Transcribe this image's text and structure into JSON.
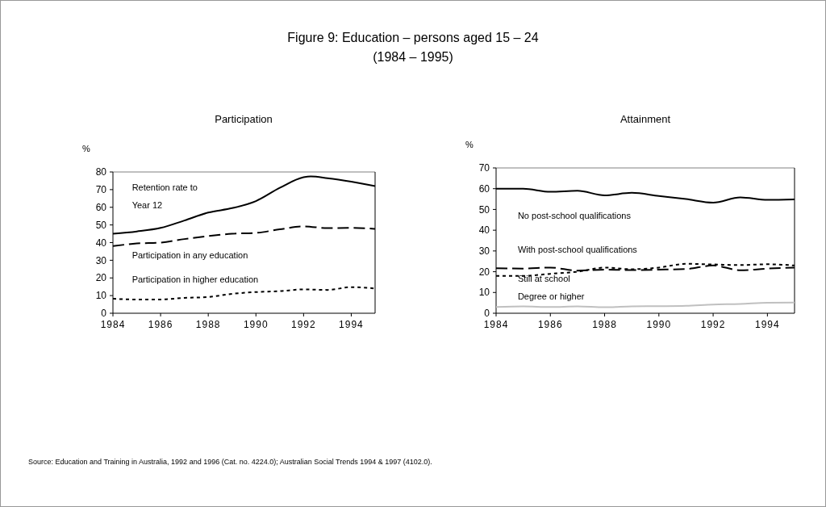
{
  "chart_data": [
    {
      "type": "other",
      "title": "Figure 9: Education – persons aged 15 – 24",
      "subtitle": "(1984 – 1995)",
      "annotations": [
        "Source: Education and Training in Australia, 1992 and 1996 (Cat. no. 4224.0); Australian Social Trends 1994 & 1997 (4102.0)."
      ]
    },
    {
      "type": "line",
      "title": "Participation",
      "ylabel": "%",
      "xlim": [
        1984,
        1995
      ],
      "xticks": [
        1984,
        1986,
        1988,
        1990,
        1992,
        1994
      ],
      "ylim": [
        0,
        80
      ],
      "yticks": [
        0,
        10,
        20,
        30,
        40,
        50,
        60,
        70,
        80
      ],
      "grid": false,
      "marker": "none",
      "x": [
        1984,
        1985,
        1986,
        1987,
        1988,
        1989,
        1990,
        1991,
        1992,
        1993,
        1994,
        1995
      ],
      "series": [
        {
          "name": "Retention rate to Year 12",
          "color": "#000000",
          "line_style": "solid",
          "x": [
            1984,
            1985,
            1986,
            1987,
            1988,
            1989,
            1990,
            1991,
            1992,
            1992.3,
            1993,
            1994,
            1995
          ],
          "values": [
            45,
            46.3,
            48.3,
            52.5,
            57,
            59.5,
            63.5,
            71,
            77,
            77.5,
            76.5,
            74.5,
            72
          ]
        },
        {
          "name": "Participation in any education",
          "color": "#000000",
          "line_style": "dashed",
          "values": [
            38,
            39.5,
            40,
            42,
            43.7,
            45,
            45.5,
            47.5,
            49.2,
            48.2,
            48.3,
            47.8
          ]
        },
        {
          "name": "Participation in higher education",
          "color": "#000000",
          "line_style": "dotted",
          "values": [
            8.2,
            7.8,
            7.8,
            8.7,
            9.2,
            11,
            12,
            12.5,
            13.5,
            13.2,
            14.8,
            14
          ]
        }
      ]
    },
    {
      "type": "line",
      "title": "Attainment",
      "ylabel": "%",
      "xlim": [
        1984,
        1995
      ],
      "xticks": [
        1984,
        1986,
        1988,
        1990,
        1992,
        1994
      ],
      "ylim": [
        0,
        70
      ],
      "yticks": [
        0,
        10,
        20,
        30,
        40,
        50,
        60,
        70
      ],
      "grid": false,
      "marker": "none",
      "x": [
        1984,
        1985,
        1986,
        1987,
        1988,
        1989,
        1990,
        1991,
        1992,
        1993,
        1994,
        1995
      ],
      "series": [
        {
          "name": "No post-school qualifications",
          "color": "#000000",
          "line_style": "solid",
          "values": [
            60,
            60,
            58.5,
            59,
            56.8,
            58,
            56.5,
            55,
            53.3,
            55.8,
            54.6,
            54.8
          ]
        },
        {
          "name": "With post-school qualifications",
          "color": "#000000",
          "line_style": "dotted",
          "values": [
            18,
            18,
            19,
            20,
            22,
            21.2,
            22,
            23.8,
            23.5,
            23.2,
            23.6,
            23
          ]
        },
        {
          "name": "Still at school",
          "color": "#000000",
          "line_style": "dashed",
          "values": [
            21.7,
            21.5,
            22,
            20.5,
            21,
            20.8,
            21,
            21.3,
            23,
            20.7,
            21.5,
            22
          ]
        },
        {
          "name": "Degree or higher",
          "color": "#c0c0c0",
          "line_style": "solid",
          "values": [
            3,
            3.3,
            3,
            3.3,
            2.9,
            3.3,
            3.4,
            3.6,
            4.2,
            4.5,
            5.1,
            5.2
          ]
        }
      ]
    }
  ]
}
